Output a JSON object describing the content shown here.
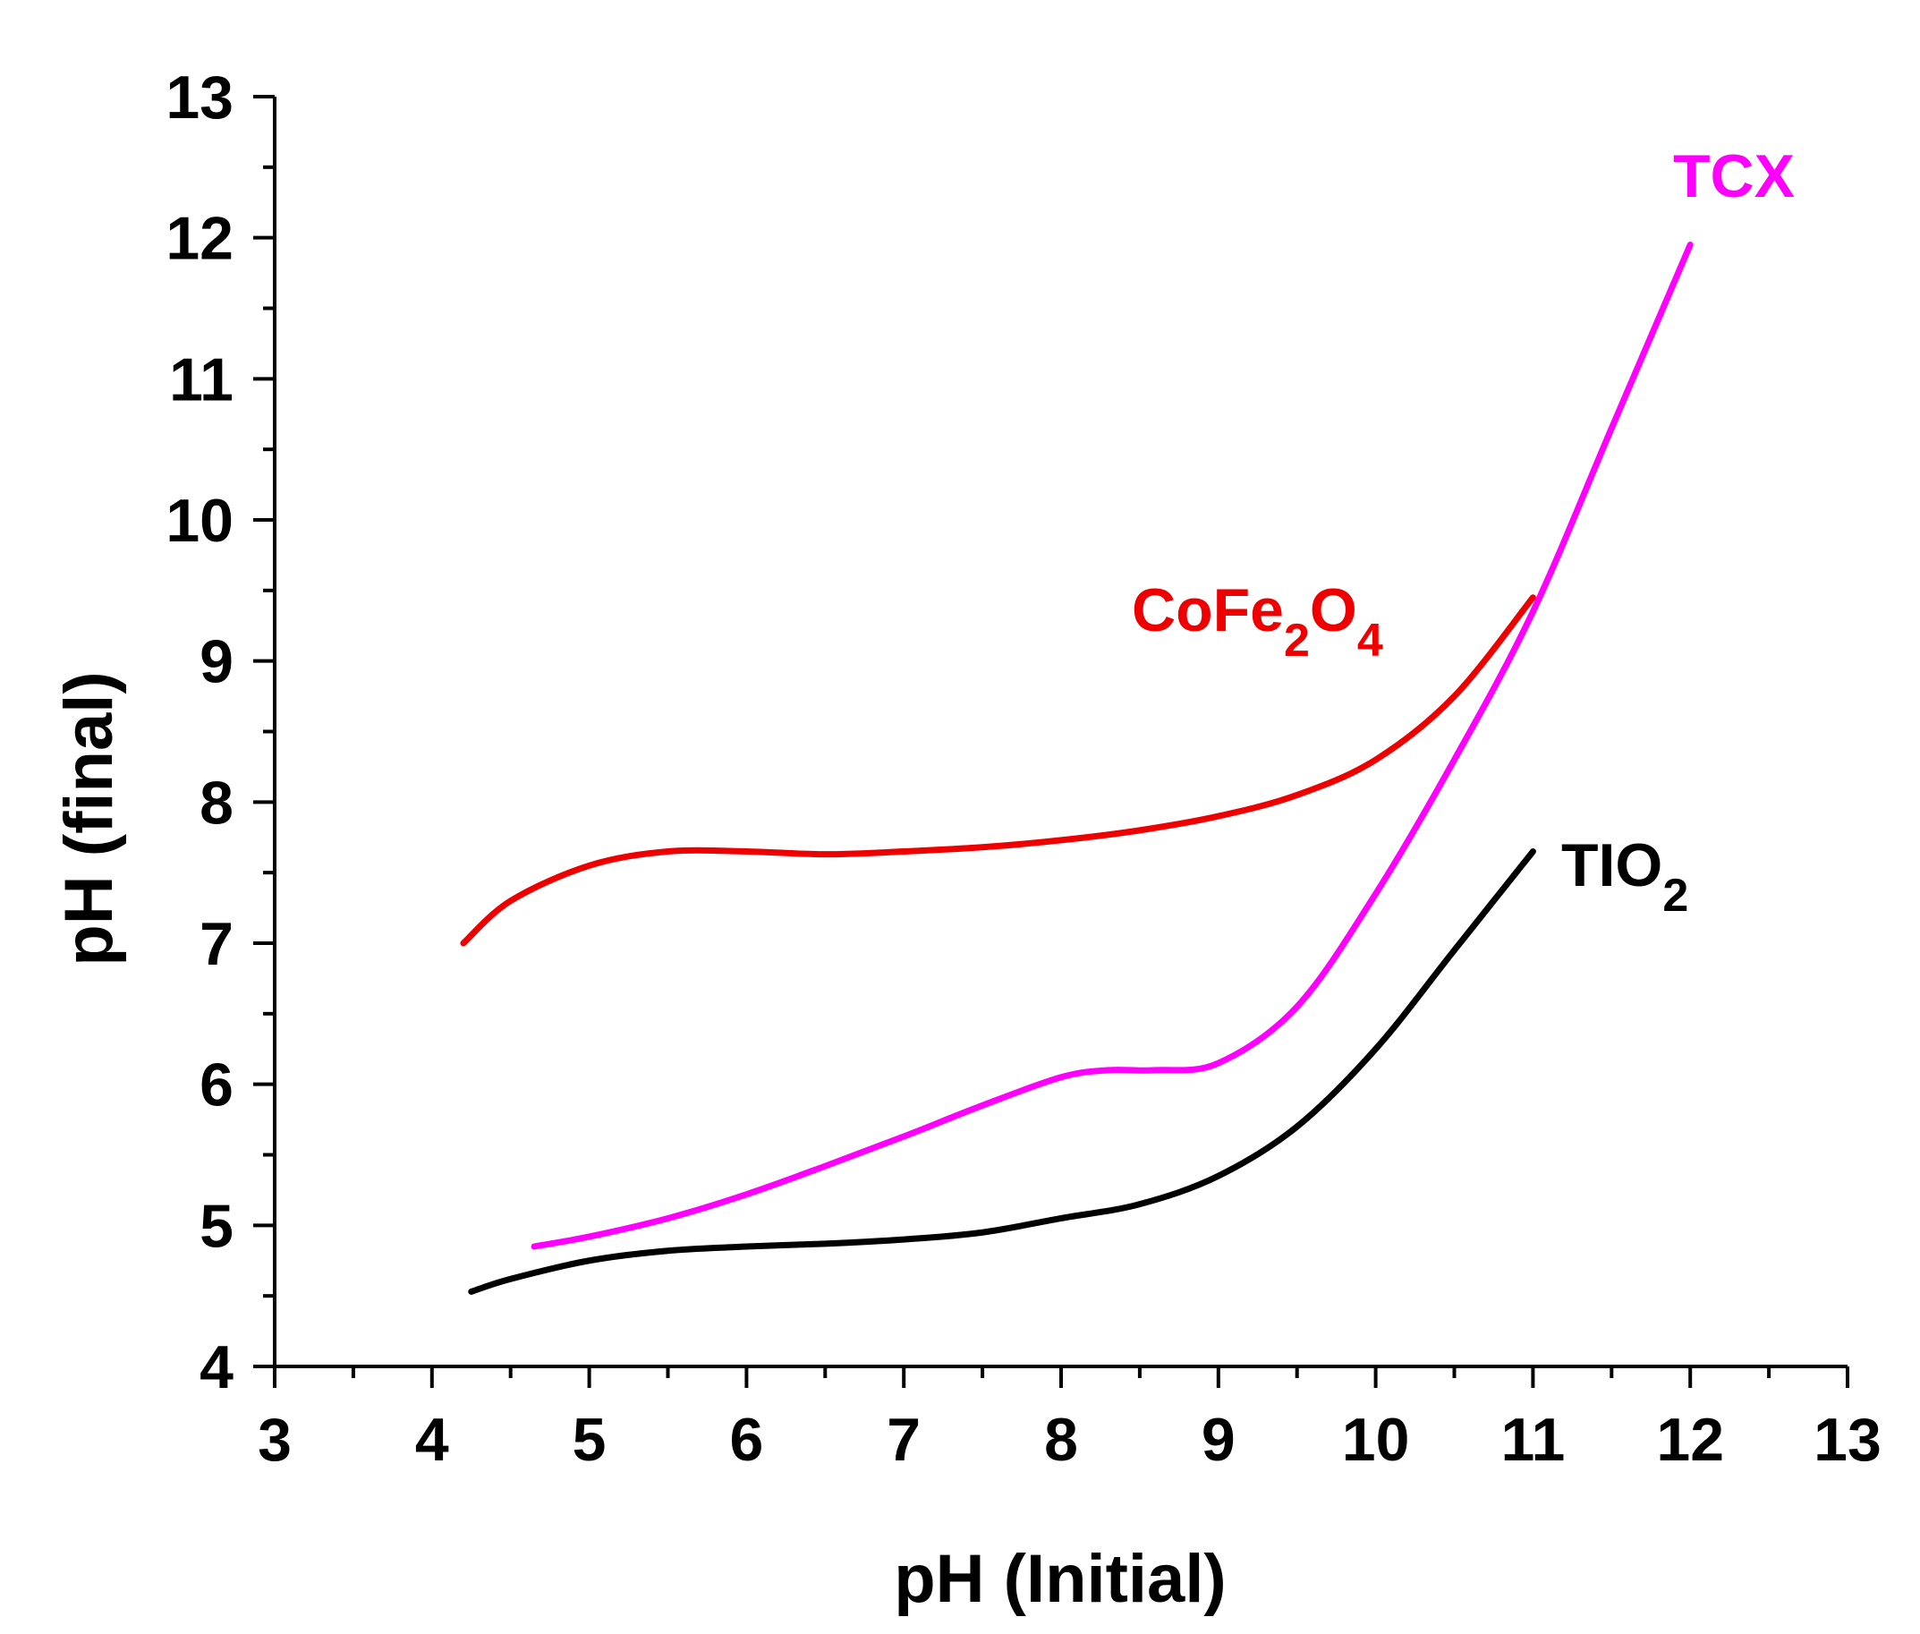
{
  "chart_data": {
    "type": "line",
    "title": "",
    "xlabel": "pH (Initial)",
    "ylabel": "pH (final)",
    "xlim": [
      3,
      13
    ],
    "ylim": [
      4,
      13
    ],
    "xticks": [
      3,
      4,
      5,
      6,
      7,
      8,
      9,
      10,
      11,
      12,
      13
    ],
    "yticks": [
      4,
      5,
      6,
      7,
      8,
      9,
      10,
      11,
      12,
      13
    ],
    "grid": false,
    "series": [
      {
        "name": "CoFe2O4",
        "label_main": "CoFe",
        "label_sub1": "2",
        "label_mid": "O",
        "label_sub2": "4",
        "color": "#ee0000",
        "x": [
          4.2,
          4.5,
          5.0,
          5.5,
          6.0,
          6.5,
          7.0,
          7.5,
          8.0,
          8.5,
          9.0,
          9.5,
          10.0,
          10.5,
          11.0
        ],
        "y": [
          7.0,
          7.3,
          7.55,
          7.65,
          7.65,
          7.63,
          7.65,
          7.68,
          7.73,
          7.8,
          7.9,
          8.05,
          8.3,
          8.75,
          9.45
        ]
      },
      {
        "name": "TCX",
        "label_main": "TCX",
        "color": "#ff00ff",
        "x": [
          4.65,
          5.0,
          5.5,
          6.0,
          6.5,
          7.0,
          7.5,
          8.0,
          8.3,
          8.6,
          9.0,
          9.5,
          10.0,
          10.5,
          11.0,
          11.5,
          12.0
        ],
        "y": [
          4.85,
          4.92,
          5.05,
          5.22,
          5.42,
          5.63,
          5.85,
          6.05,
          6.1,
          6.1,
          6.15,
          6.55,
          7.35,
          8.3,
          9.35,
          10.65,
          11.95
        ]
      },
      {
        "name": "TIO2",
        "label_main": "TIO",
        "label_sub1": "2",
        "color": "#000000",
        "x": [
          4.25,
          4.5,
          5.0,
          5.5,
          6.0,
          6.5,
          7.0,
          7.5,
          8.0,
          8.5,
          9.0,
          9.5,
          10.0,
          10.5,
          11.0
        ],
        "y": [
          4.53,
          4.62,
          4.75,
          4.82,
          4.85,
          4.87,
          4.9,
          4.95,
          5.05,
          5.15,
          5.35,
          5.7,
          6.25,
          6.95,
          7.65
        ]
      }
    ]
  }
}
